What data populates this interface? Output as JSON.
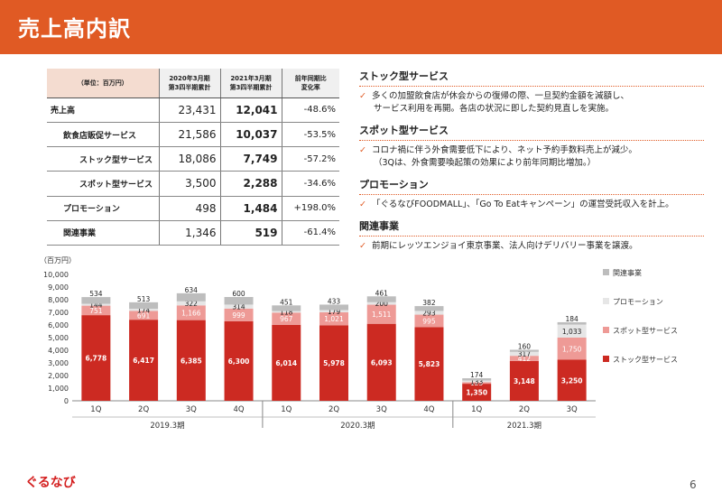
{
  "title": "売上高内訳",
  "table": {
    "headers": {
      "unit": "（単位：百万円）",
      "col1_line1": "2020年3月期",
      "col1_line2": "第3四半期累計",
      "col2_line1": "2021年3月期",
      "col2_line2": "第3四半期累計",
      "col3_line1": "前年同期比",
      "col3_line2": "変化率"
    },
    "rows": [
      {
        "label": "売上高",
        "prev": "23,431",
        "curr": "12,041",
        "yoy": "-48.6%"
      },
      {
        "label": "飲食店販促サービス",
        "prev": "21,586",
        "curr": "10,037",
        "yoy": "-53.5%"
      },
      {
        "label": "ストック型サービス",
        "prev": "18,086",
        "curr": "7,749",
        "yoy": "-57.2%"
      },
      {
        "label": "スポット型サービス",
        "prev": "3,500",
        "curr": "2,288",
        "yoy": "-34.6%"
      },
      {
        "label": "プロモーション",
        "prev": "498",
        "curr": "1,484",
        "yoy": "+198.0%"
      },
      {
        "label": "関連事業",
        "prev": "1,346",
        "curr": "519",
        "yoy": "-61.4%"
      }
    ]
  },
  "panel": {
    "sections": [
      {
        "title": "ストック型サービス",
        "bullets": [
          {
            "main": "多くの加盟飲食店が休会からの復帰の際、一旦契約金額を減額し、",
            "sub": "サービス利用を再開。各店の状況に即した契約見直しを実施。"
          }
        ]
      },
      {
        "title": "スポット型サービス",
        "bullets": [
          {
            "main": "コロナ禍に伴う外食需要低下により、ネット予約手数料売上が減少。",
            "sub": "（3Qは、外食需要喚起策の効果により前年同期比増加。）"
          }
        ]
      },
      {
        "title": "プロモーション",
        "bullets": [
          {
            "main": "「ぐるなびFOODMALL」、「Go To Eatキャンペーン」の運営受託収入を計上。",
            "sub": ""
          }
        ]
      },
      {
        "title": "関連事業",
        "bullets": [
          {
            "main": "前期にレッツエンジョイ東京事業、法人向けデリバリー事業を譲渡。",
            "sub": ""
          }
        ]
      }
    ],
    "check_icon": "✓"
  },
  "chart_data": {
    "type": "bar",
    "stacked": true,
    "unit_label": "（百万円）",
    "ylim": [
      0,
      10000
    ],
    "yticks": [
      "0",
      "1,000",
      "2,000",
      "3,000",
      "4,000",
      "5,000",
      "6,000",
      "7,000",
      "8,000",
      "9,000",
      "10,000"
    ],
    "categories": [
      "1Q",
      "2Q",
      "3Q",
      "4Q",
      "1Q",
      "2Q",
      "3Q",
      "4Q",
      "1Q",
      "2Q",
      "3Q"
    ],
    "groups": [
      {
        "label": "2019.3期",
        "count": 4
      },
      {
        "label": "2020.3期",
        "count": 4
      },
      {
        "label": "2021.3期",
        "count": 3
      }
    ],
    "series": [
      {
        "name": "ストック型サービス",
        "color": "#cc2a22",
        "values": [
          6778,
          6417,
          6385,
          6300,
          6014,
          5978,
          6093,
          5823,
          1350,
          3148,
          3250
        ],
        "labels": [
          "6,778",
          "6,417",
          "6,385",
          "6,300",
          "6,014",
          "5,978",
          "6,093",
          "5,823",
          "1,350",
          "3,148",
          "3,250"
        ]
      },
      {
        "name": "スポット型サービス",
        "color": "#ee9a96",
        "values": [
          751,
          691,
          1166,
          999,
          967,
          1021,
          1511,
          995,
          125,
          412,
          1750
        ],
        "labels": [
          "751",
          "691",
          "1,166",
          "999",
          "967",
          "1,021",
          "1,511",
          "995",
          "125",
          "412",
          "1,750"
        ]
      },
      {
        "name": "プロモーション",
        "color": "#e6e6e6",
        "values": [
          144,
          174,
          322,
          314,
          118,
          179,
          200,
          293,
          133,
          317,
          1033
        ],
        "labels": [
          "144",
          "174",
          "322",
          "314",
          "118",
          "179",
          "200",
          "293",
          "133",
          "317",
          "1,033"
        ]
      },
      {
        "name": "関連事業",
        "color": "#bdbdbd",
        "values": [
          534,
          513,
          634,
          600,
          451,
          433,
          461,
          382,
          174,
          160,
          184
        ],
        "labels": [
          "534",
          "513",
          "634",
          "600",
          "451",
          "433",
          "461",
          "382",
          "174",
          "160",
          "184"
        ]
      }
    ],
    "legend_order": [
      "関連事業",
      "プロモーション",
      "スポット型サービス",
      "ストック型サービス"
    ]
  },
  "footer": {
    "logo": "ぐるなび",
    "page": "6"
  }
}
